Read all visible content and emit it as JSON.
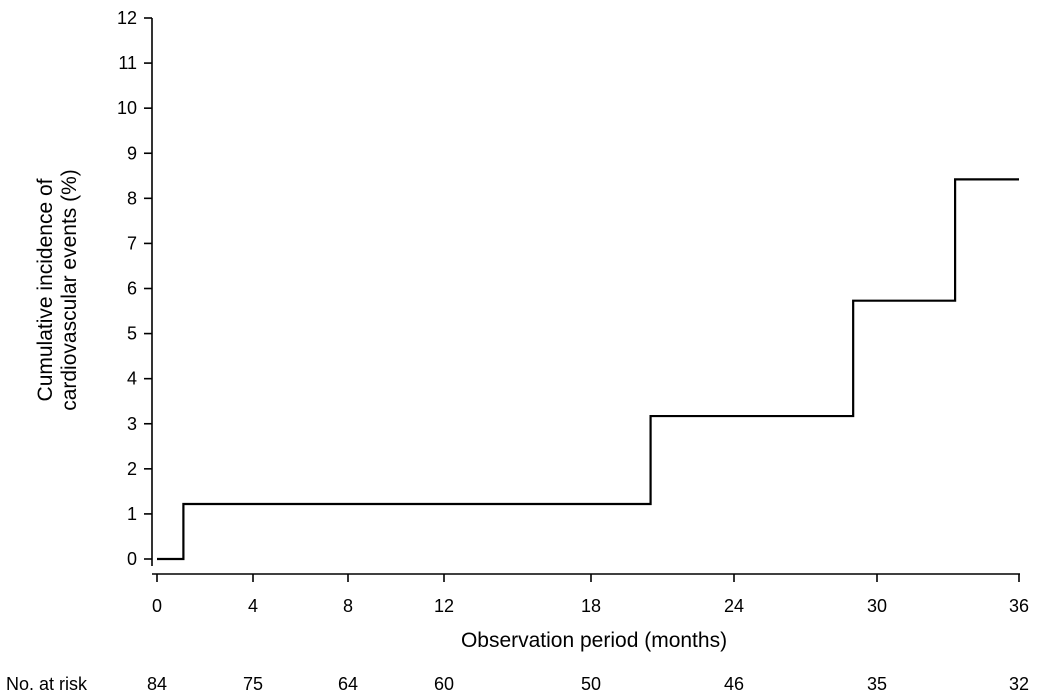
{
  "chart_data": {
    "type": "line",
    "step": true,
    "xlabel": "Observation period (months)",
    "ylabel_lines": [
      "Cumulative incidence of",
      "cardiovascular events (%)"
    ],
    "x_ticks": [
      0,
      4,
      8,
      12,
      18,
      24,
      30,
      36
    ],
    "y_ticks": [
      0,
      1,
      2,
      3,
      4,
      5,
      6,
      7,
      8,
      9,
      10,
      11,
      12
    ],
    "ylim": [
      0,
      12
    ],
    "xlim": [
      0,
      36
    ],
    "grid": false,
    "series": [
      {
        "x": [
          0,
          1.1,
          20.5,
          29,
          33.3,
          36
        ],
        "y": [
          0,
          1.22,
          3.17,
          5.73,
          8.42,
          8.42
        ]
      }
    ],
    "risk_table": {
      "label": "No. at risk",
      "values": [
        84,
        75,
        64,
        60,
        50,
        46,
        35,
        32
      ]
    }
  }
}
